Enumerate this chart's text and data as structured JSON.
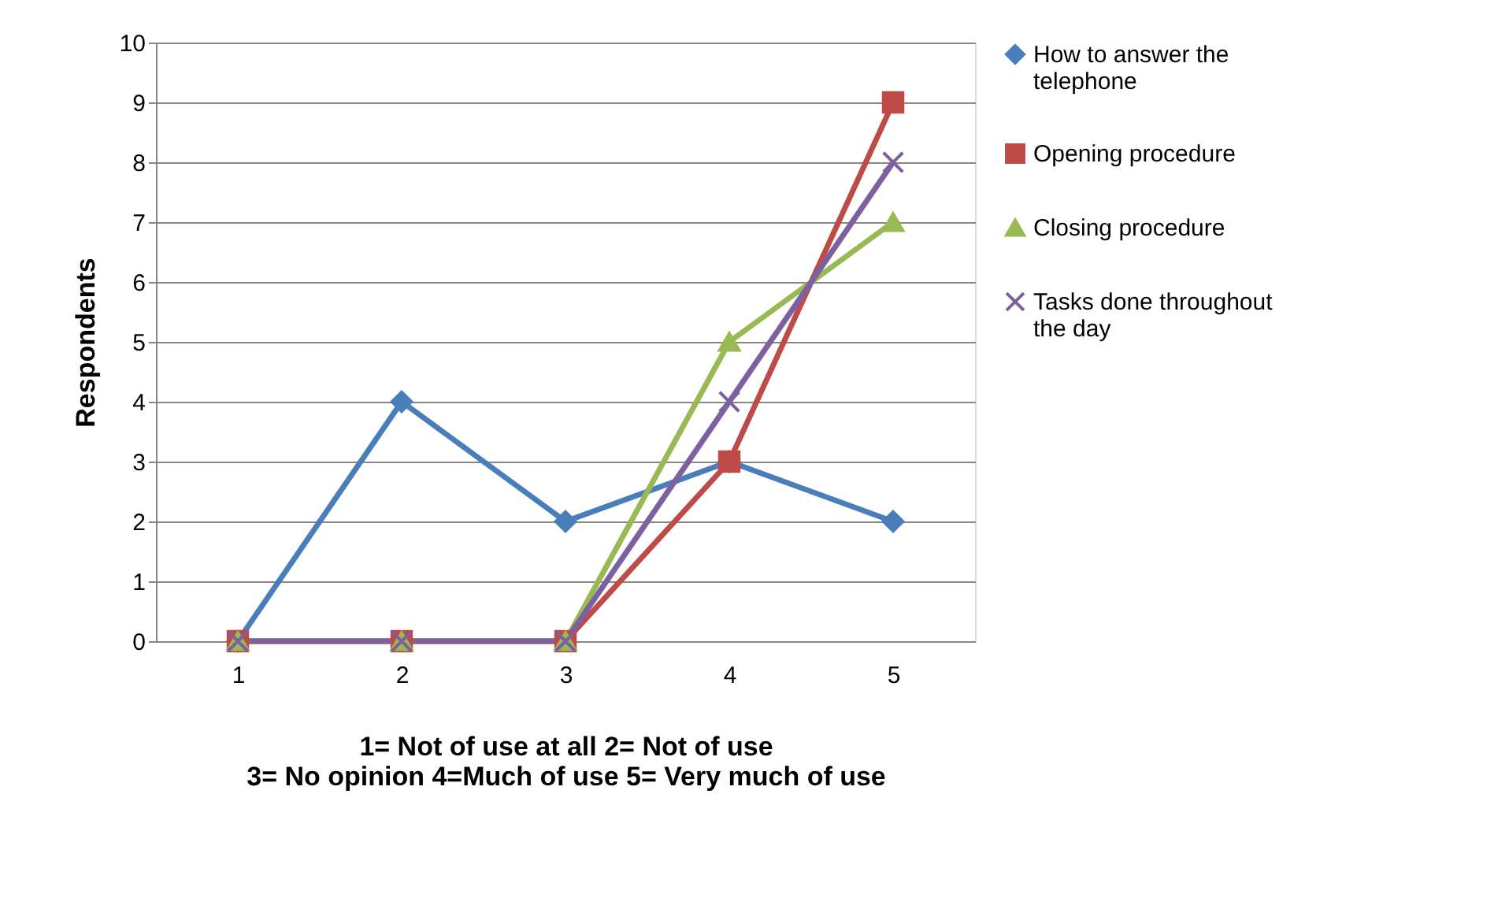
{
  "chart_data": {
    "type": "line",
    "xlabel": [
      "1= Not of use at all 2= Not of use",
      "3= No opinion 4=Much of use 5= Very much of use"
    ],
    "ylabel": "Respondents",
    "categories": [
      "1",
      "2",
      "3",
      "4",
      "5"
    ],
    "series": [
      {
        "name": "How to answer the telephone",
        "color": "#4a7ebb",
        "marker": "diamond",
        "values": [
          0,
          4,
          2,
          3,
          2
        ]
      },
      {
        "name": "Opening procedure",
        "color": "#be4b48",
        "marker": "square",
        "values": [
          0,
          0,
          0,
          3,
          9
        ]
      },
      {
        "name": "Closing procedure",
        "color": "#98b954",
        "marker": "triangle",
        "values": [
          0,
          0,
          0,
          5,
          7
        ]
      },
      {
        "name": "Tasks done throughout the day",
        "color": "#7d60a0",
        "marker": "cross",
        "values": [
          0,
          0,
          0,
          4,
          8
        ]
      }
    ],
    "ylim": [
      0,
      10
    ],
    "yticks": [
      0,
      1,
      2,
      3,
      4,
      5,
      6,
      7,
      8,
      9,
      10
    ],
    "grid": "y",
    "legend": "right",
    "line_style": "solid"
  }
}
